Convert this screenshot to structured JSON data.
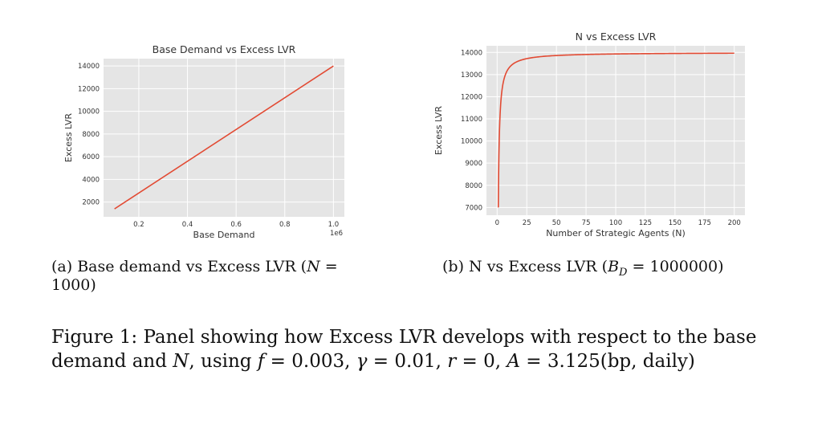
{
  "chart_data": [
    {
      "type": "line",
      "title": "Base Demand vs Excess LVR",
      "xlabel": "Base Demand",
      "ylabel": "Excess LVR",
      "x_offset_label": "1e6",
      "xlim": [
        55000,
        1045000
      ],
      "ylim": [
        700,
        14650
      ],
      "x_ticks": [
        200000,
        400000,
        600000,
        800000,
        1000000
      ],
      "x_tick_labels": [
        "0.2",
        "0.4",
        "0.6",
        "0.8",
        "1.0"
      ],
      "y_ticks": [
        2000,
        4000,
        6000,
        8000,
        10000,
        12000,
        14000
      ],
      "y_tick_labels": [
        "2000",
        "4000",
        "6000",
        "8000",
        "10000",
        "12000",
        "14000"
      ],
      "grid": true,
      "color": "#e24a33",
      "series": [
        {
          "x": [
            100000,
            1000000
          ],
          "y": [
            1400,
            14000
          ]
        }
      ]
    },
    {
      "type": "line",
      "title": "N vs Excess LVR",
      "xlabel": "Number of Strategic Agents (N)",
      "ylabel": "Excess LVR",
      "xlim": [
        -9,
        209
      ],
      "ylim": [
        6650,
        14300
      ],
      "x_ticks": [
        0,
        25,
        50,
        75,
        100,
        125,
        150,
        175,
        200
      ],
      "x_tick_labels": [
        "0",
        "25",
        "50",
        "75",
        "100",
        "125",
        "150",
        "175",
        "200"
      ],
      "y_ticks": [
        7000,
        8000,
        9000,
        10000,
        11000,
        12000,
        13000,
        14000
      ],
      "y_tick_labels": [
        "7000",
        "8000",
        "9000",
        "10000",
        "11000",
        "12000",
        "13000",
        "14000"
      ],
      "grid": true,
      "color": "#e24a33",
      "series": [
        {
          "model": "14000 - 7000/N",
          "N_range": [
            1,
            200
          ]
        }
      ]
    }
  ],
  "captions": {
    "a_prefix": "(a) Base demand vs Excess LVR (",
    "a_var": "N",
    "a_eq": " = 1000)",
    "b_prefix": "(b) N vs Excess LVR (",
    "b_var": "B",
    "b_sub": "D",
    "b_eq": " = 1000000)",
    "fig_text": "Figure 1: Panel showing how Excess LVR develops with respect to the base demand and ",
    "fig_N": "N",
    "fig_using": ", using ",
    "fig_f": "f",
    "fig_f_val": " = 0.003, ",
    "fig_gamma": "γ",
    "fig_gamma_val": " = 0.01, ",
    "fig_r": "r",
    "fig_r_val": " = 0, ",
    "fig_A": "A",
    "fig_A_val": " = 3.125(bp, daily)"
  }
}
